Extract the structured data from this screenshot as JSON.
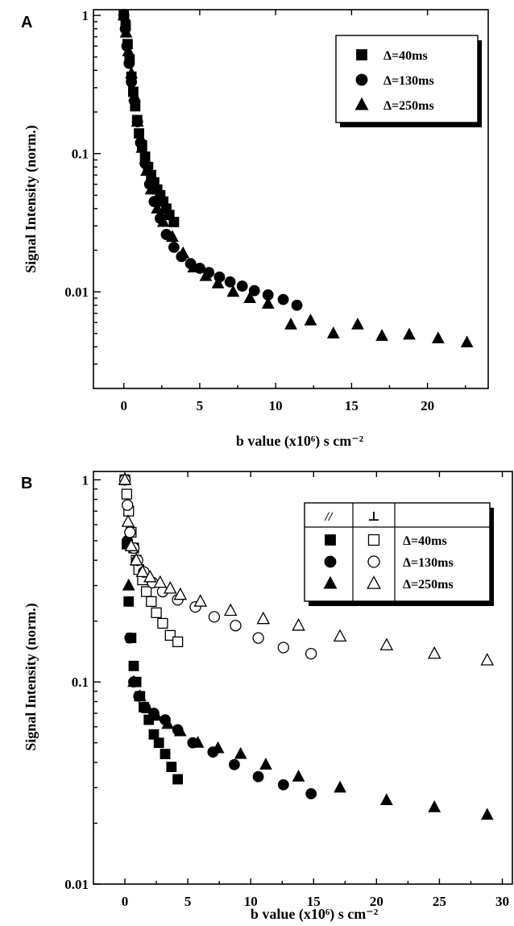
{
  "chart_data": [
    {
      "type": "scatter",
      "panel": "A",
      "xlabel": "b value (x10⁶) s cm⁻²",
      "ylabel": "Signal Intensity (norm.)",
      "xlim": [
        -2,
        24
      ],
      "ylim": [
        0.002,
        1.1
      ],
      "yscale": "log",
      "xticks": [
        0,
        5,
        10,
        15,
        20
      ],
      "yticks": [
        {
          "v": 1,
          "label": "1"
        },
        {
          "v": 0.1,
          "label": "0.1"
        },
        {
          "v": 0.01,
          "label": "0.01"
        }
      ],
      "legend": {
        "position": "top-right",
        "entries": [
          {
            "marker": "square",
            "fill": "filled",
            "label": "Δ=40ms"
          },
          {
            "marker": "circle",
            "fill": "filled",
            "label": "Δ=130ms"
          },
          {
            "marker": "triangle",
            "fill": "filled",
            "label": "Δ=250ms"
          }
        ]
      },
      "series": [
        {
          "marker": "square",
          "fill": "filled",
          "x": [
            0,
            0.12,
            0.25,
            0.38,
            0.5,
            0.62,
            0.75,
            0.88,
            1.0,
            1.2,
            1.4,
            1.6,
            1.8,
            2.0,
            2.2,
            2.4,
            2.6,
            2.8,
            3.0,
            3.3
          ],
          "y": [
            1.0,
            0.85,
            0.62,
            0.48,
            0.36,
            0.28,
            0.22,
            0.175,
            0.14,
            0.115,
            0.095,
            0.08,
            0.07,
            0.062,
            0.055,
            0.05,
            0.045,
            0.04,
            0.036,
            0.032
          ]
        },
        {
          "marker": "circle",
          "fill": "filled",
          "x": [
            0,
            0.1,
            0.2,
            0.35,
            0.5,
            0.7,
            0.9,
            1.1,
            1.4,
            1.7,
            2.0,
            2.4,
            2.8,
            3.3,
            3.8,
            4.4,
            5.0,
            5.6,
            6.3,
            7.0,
            7.8,
            8.6,
            9.5,
            10.5,
            11.4
          ],
          "y": [
            1.0,
            0.8,
            0.6,
            0.45,
            0.33,
            0.24,
            0.17,
            0.12,
            0.085,
            0.06,
            0.045,
            0.034,
            0.026,
            0.021,
            0.018,
            0.016,
            0.0148,
            0.0138,
            0.0128,
            0.0118,
            0.011,
            0.0102,
            0.0095,
            0.0088,
            0.008
          ]
        },
        {
          "marker": "triangle",
          "fill": "filled",
          "x": [
            0,
            0.15,
            0.3,
            0.5,
            0.7,
            0.9,
            1.2,
            1.5,
            1.8,
            2.2,
            2.6,
            3.2,
            3.9,
            4.6,
            5.4,
            6.2,
            7.2,
            8.3,
            9.5,
            11.0,
            12.3,
            13.8,
            15.4,
            17.0,
            18.8,
            20.7,
            22.6
          ],
          "y": [
            1.0,
            0.75,
            0.55,
            0.38,
            0.26,
            0.17,
            0.11,
            0.075,
            0.055,
            0.04,
            0.032,
            0.025,
            0.019,
            0.015,
            0.013,
            0.0115,
            0.01,
            0.009,
            0.0082,
            0.0058,
            0.0062,
            0.005,
            0.0058,
            0.0048,
            0.0049,
            0.0046,
            0.0043
          ]
        }
      ]
    },
    {
      "type": "scatter",
      "panel": "B",
      "xlabel": "b value (x10⁶) s cm⁻²",
      "ylabel": "Signal Intensity (norm.)",
      "xlim": [
        -2.5,
        30.8
      ],
      "ylim": [
        0.01,
        1.1
      ],
      "yscale": "log",
      "xticks": [
        0,
        5,
        10,
        15,
        20,
        25,
        30
      ],
      "yticks": [
        {
          "v": 1,
          "label": "1"
        },
        {
          "v": 0.1,
          "label": "0.1"
        },
        {
          "v": 0.01,
          "label": "0.01"
        }
      ],
      "legend": {
        "position": "top-right",
        "header": [
          "//",
          "⊥"
        ],
        "entries": [
          {
            "marker": "square",
            "label": "Δ=40ms"
          },
          {
            "marker": "circle",
            "label": "Δ=130ms"
          },
          {
            "marker": "triangle",
            "label": "Δ=250ms"
          }
        ]
      },
      "series": [
        {
          "marker": "square",
          "fill": "filled",
          "x": [
            0,
            0.15,
            0.3,
            0.5,
            0.7,
            0.9,
            1.2,
            1.5,
            1.9,
            2.3,
            2.7,
            3.2,
            3.7,
            4.2
          ],
          "y": [
            1.0,
            0.48,
            0.25,
            0.165,
            0.12,
            0.1,
            0.085,
            0.075,
            0.065,
            0.055,
            0.05,
            0.044,
            0.038,
            0.033
          ]
        },
        {
          "marker": "circle",
          "fill": "filled",
          "x": [
            0,
            0.2,
            0.4,
            0.7,
            1.1,
            1.6,
            2.3,
            3.2,
            4.2,
            5.4,
            7.0,
            8.7,
            10.6,
            12.6,
            14.8
          ],
          "y": [
            1.0,
            0.5,
            0.165,
            0.1,
            0.085,
            0.075,
            0.07,
            0.065,
            0.058,
            0.05,
            0.045,
            0.039,
            0.034,
            0.031,
            0.028
          ]
        },
        {
          "marker": "triangle",
          "fill": "filled",
          "x": [
            0,
            0.3,
            0.7,
            1.2,
            1.8,
            2.5,
            3.4,
            4.4,
            5.8,
            7.4,
            9.2,
            11.2,
            13.8,
            17.1,
            20.8,
            24.6,
            28.8
          ],
          "y": [
            1.0,
            0.3,
            0.1,
            0.085,
            0.074,
            0.068,
            0.062,
            0.057,
            0.05,
            0.047,
            0.044,
            0.039,
            0.034,
            0.03,
            0.026,
            0.024,
            0.022
          ]
        },
        {
          "marker": "square",
          "fill": "open",
          "x": [
            0,
            0.15,
            0.3,
            0.5,
            0.7,
            0.9,
            1.1,
            1.4,
            1.7,
            2.1,
            2.5,
            3.0,
            3.6,
            4.2
          ],
          "y": [
            1.0,
            0.85,
            0.7,
            0.55,
            0.46,
            0.4,
            0.36,
            0.32,
            0.28,
            0.25,
            0.22,
            0.195,
            0.17,
            0.158
          ]
        },
        {
          "marker": "circle",
          "fill": "open",
          "x": [
            0,
            0.2,
            0.4,
            0.7,
            1.0,
            1.5,
            2.2,
            3.0,
            4.2,
            5.6,
            7.1,
            8.8,
            10.6,
            12.6,
            14.8
          ],
          "y": [
            1.0,
            0.75,
            0.55,
            0.46,
            0.4,
            0.35,
            0.31,
            0.28,
            0.255,
            0.235,
            0.21,
            0.19,
            0.165,
            0.148,
            0.138
          ]
        },
        {
          "marker": "triangle",
          "fill": "open",
          "x": [
            0,
            0.25,
            0.5,
            0.9,
            1.4,
            2.0,
            2.8,
            3.6,
            4.4,
            6.0,
            8.4,
            11.0,
            13.8,
            17.1,
            20.8,
            24.6,
            28.8
          ],
          "y": [
            1.0,
            0.62,
            0.47,
            0.4,
            0.35,
            0.33,
            0.31,
            0.29,
            0.27,
            0.25,
            0.225,
            0.205,
            0.19,
            0.168,
            0.152,
            0.138,
            0.128
          ]
        }
      ]
    }
  ]
}
